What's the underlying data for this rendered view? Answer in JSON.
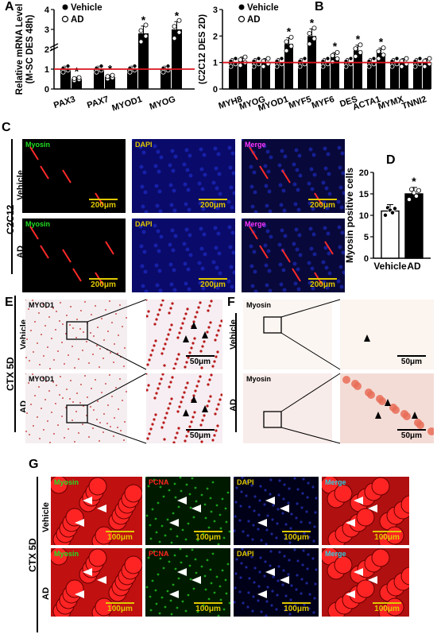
{
  "panels": {
    "A": "A",
    "B": "B",
    "C": "C",
    "D": "D",
    "E": "E",
    "F": "F",
    "G": "G"
  },
  "legend": {
    "vehicle": "Vehicle",
    "ad": "AD"
  },
  "colors": {
    "red_line": "#d8161c",
    "bar_black": "#000000",
    "dot_open": "#ffffff",
    "myosin_green": "#22dd22",
    "dapi_yellow": "#e0c800",
    "merge_magenta": "#ff33ff",
    "pcna_red": "#ff2020",
    "merge_cyan": "#33ccdd"
  },
  "chart_data": [
    {
      "type": "bar",
      "panel": "A",
      "ylabel": "Relative mRNA Level\n(M-SC DES 48h)",
      "ylabel_line1": "Relative mRNA Level",
      "ylabel_line2": "(M-SC DES 48h)",
      "yticks": [
        "0",
        "1",
        "2",
        "3",
        "4"
      ],
      "ylim": [
        0,
        4
      ],
      "axis_break": true,
      "reference_line": 1,
      "categories": [
        "PAX3",
        "PAX7",
        "MYOD1",
        "MYOG"
      ],
      "series": [
        {
          "name": "Vehicle",
          "values": [
            1.0,
            1.0,
            1.0,
            1.0
          ]
        },
        {
          "name": "AD",
          "values": [
            0.5,
            0.6,
            2.8,
            3.0
          ]
        }
      ],
      "significant": [
        true,
        true,
        true,
        true
      ]
    },
    {
      "type": "bar",
      "panel": "B",
      "ylabel_line1": "Relative mRNA Level",
      "ylabel_line2": "(C2C12 DES 2D)",
      "yticks": [
        "0",
        "1",
        "2",
        "3"
      ],
      "ylim": [
        0,
        3
      ],
      "reference_line": 1,
      "categories": [
        "MYH8",
        "MYOG",
        "MYOD1",
        "MYF5",
        "MYF6",
        "DES",
        "ACTA1",
        "MYMX",
        "TNNI2"
      ],
      "series": [
        {
          "name": "Vehicle",
          "values": [
            1.0,
            1.0,
            1.0,
            1.0,
            1.0,
            1.0,
            1.0,
            1.0,
            1.0
          ]
        },
        {
          "name": "AD",
          "values": [
            1.05,
            1.0,
            1.7,
            2.0,
            1.2,
            1.45,
            1.35,
            1.0,
            1.0
          ]
        }
      ],
      "significant": [
        false,
        false,
        true,
        true,
        true,
        true,
        true,
        false,
        false
      ]
    },
    {
      "type": "bar",
      "panel": "D",
      "ylabel": "Myosin positive cells",
      "yticks": [
        "0",
        "5",
        "10",
        "15",
        "20"
      ],
      "ylim": [
        0,
        20
      ],
      "categories": [
        "Vehicle",
        "AD"
      ],
      "values": [
        11,
        15
      ],
      "bar_colors": [
        "#ffffff",
        "#000000"
      ],
      "significant": [
        false,
        true
      ]
    }
  ],
  "panelC": {
    "row_labels": [
      "Vehicle",
      "AD"
    ],
    "group_label": "C2C12",
    "tile_labels": [
      "Myosin",
      "DAPI",
      "Merge"
    ],
    "scale": "200μm"
  },
  "panelE": {
    "group_label": "CTX 5D",
    "row_labels": [
      "Vehicle",
      "AD"
    ],
    "stain": "MYOD1",
    "scale": "50μm"
  },
  "panelF": {
    "row_labels": [
      "Vehicle",
      "AD"
    ],
    "stain": "Myosin",
    "scale": "50μm"
  },
  "panelG": {
    "group_label": "CTX 5D",
    "row_labels": [
      "Vehicle",
      "AD"
    ],
    "tile_labels": [
      "Myosin",
      "PCNA",
      "DAPI",
      "Merge"
    ],
    "scale": "100μm"
  }
}
